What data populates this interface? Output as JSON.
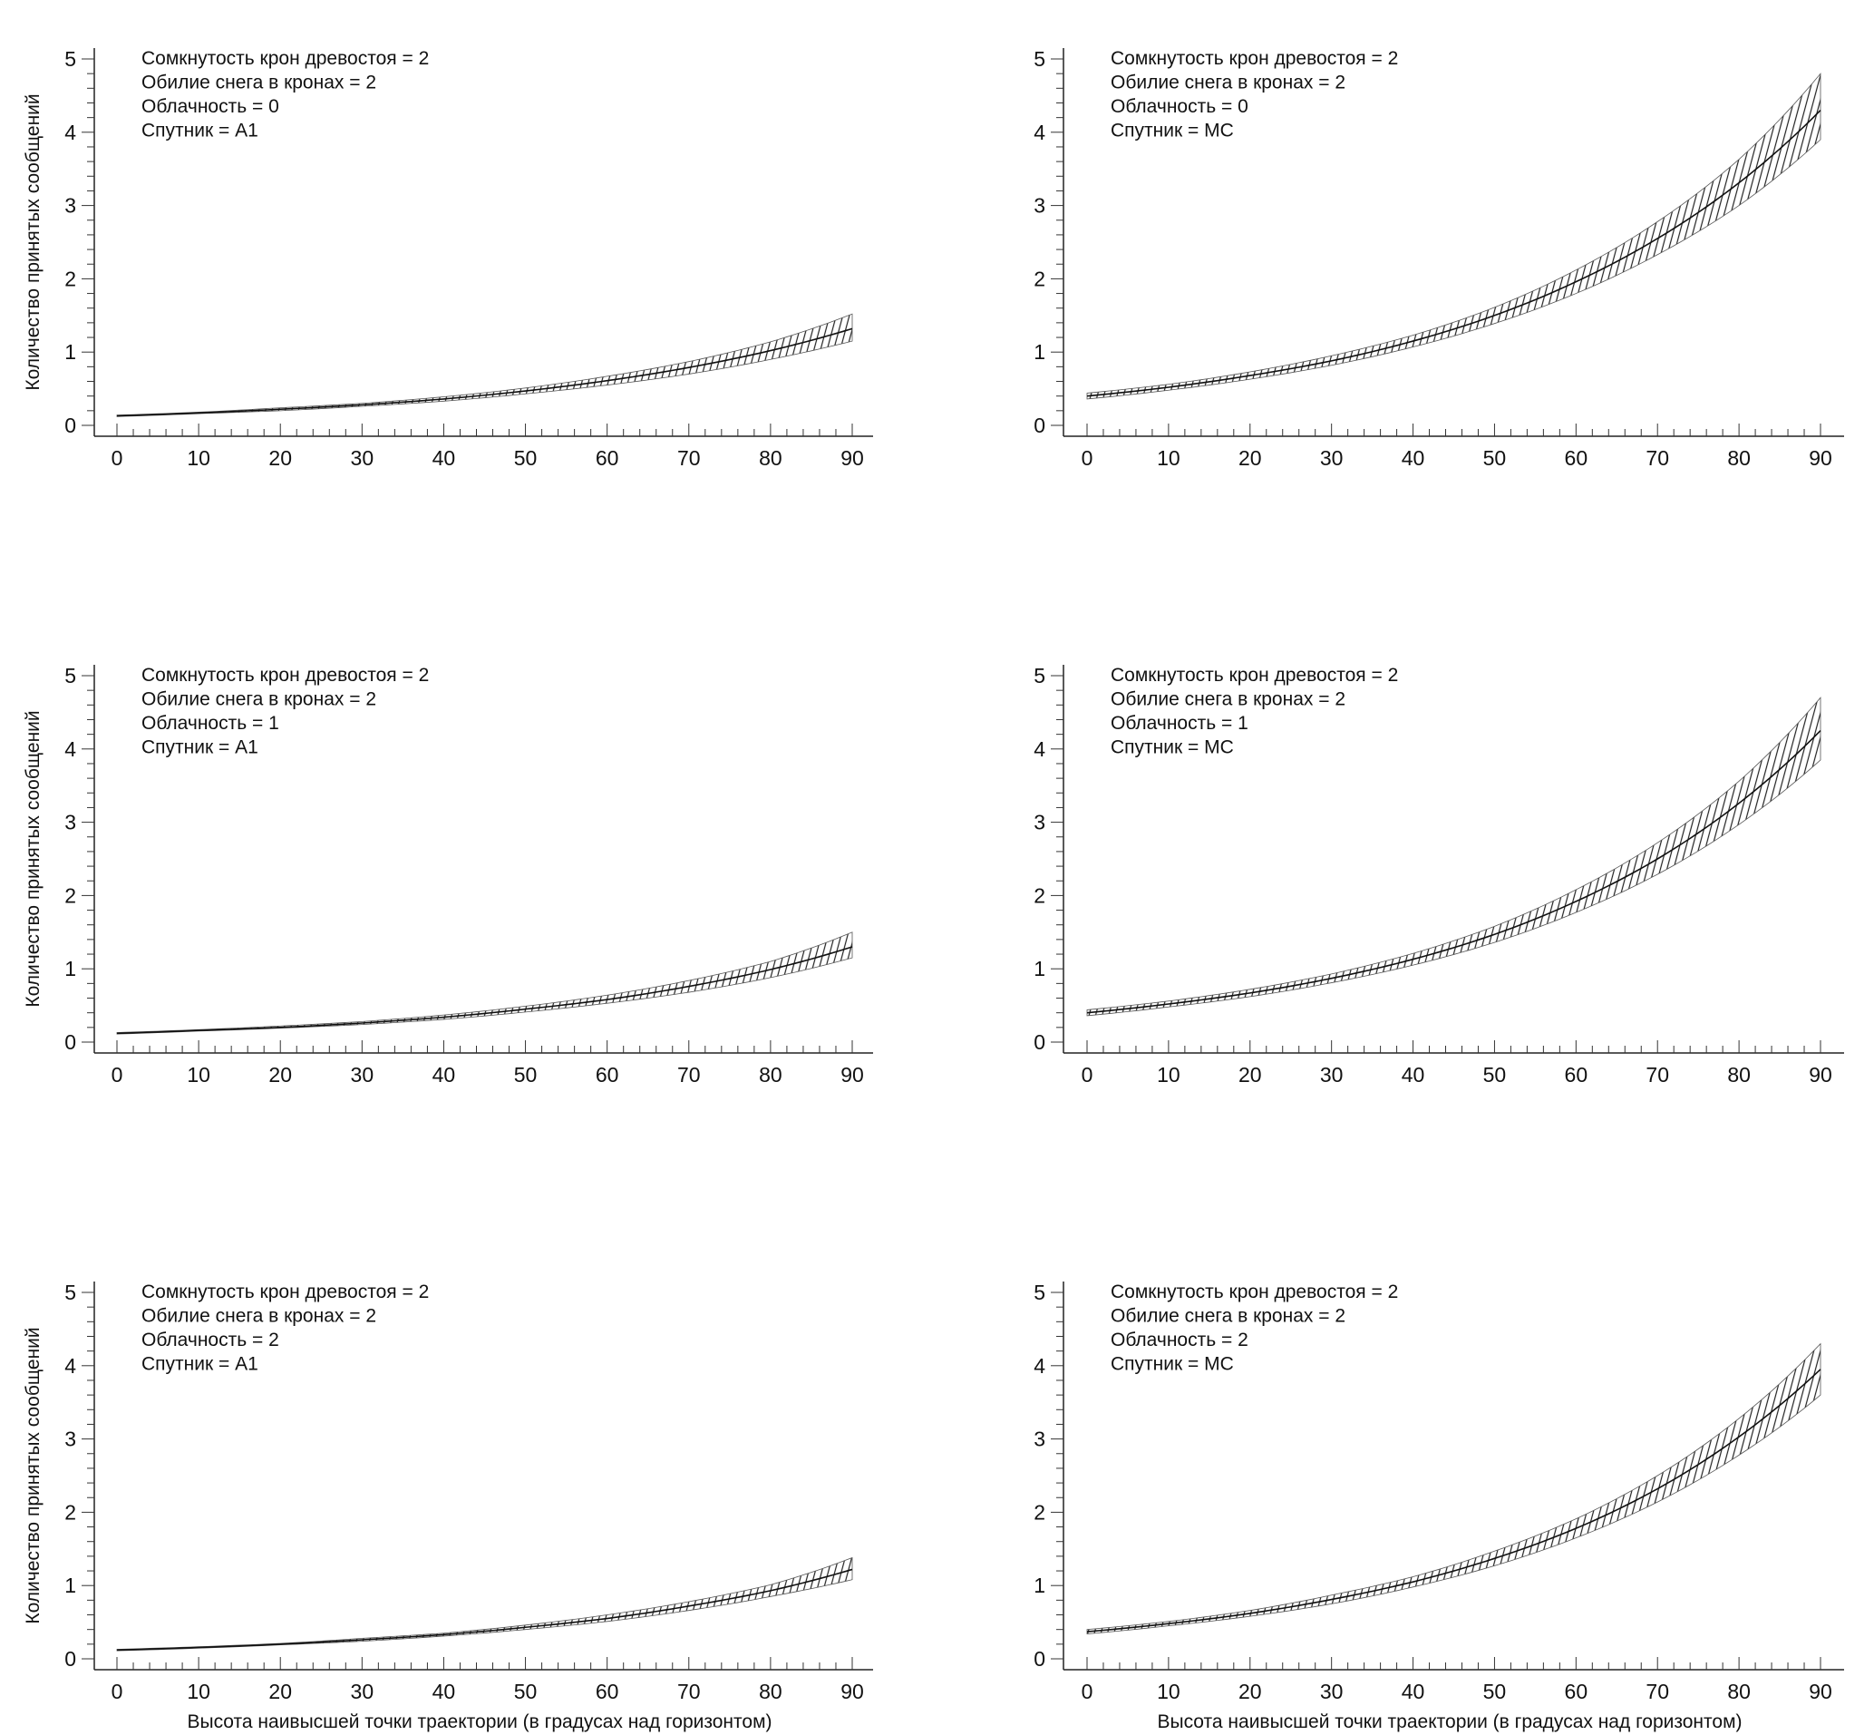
{
  "chart_data": [
    {
      "type": "line",
      "title": "",
      "legend": [
        "Сомкнутость крон древостоя = 2",
        "Обилие снега в кронах = 2",
        "Облачность = 0",
        "Спутник = A1"
      ],
      "ylabel": "Количество принятых сообщений",
      "xlabel": "",
      "x": [
        0,
        10,
        20,
        30,
        40,
        50,
        60,
        70,
        80,
        90
      ],
      "mean": [
        0.13,
        0.17,
        0.22,
        0.28,
        0.36,
        0.47,
        0.61,
        0.79,
        1.02,
        1.32
      ],
      "lower": [
        0.12,
        0.16,
        0.2,
        0.26,
        0.33,
        0.43,
        0.55,
        0.7,
        0.9,
        1.15
      ],
      "upper": [
        0.14,
        0.18,
        0.24,
        0.3,
        0.39,
        0.51,
        0.67,
        0.87,
        1.14,
        1.52
      ],
      "xlim": [
        0,
        90
      ],
      "ylim": [
        0,
        5
      ],
      "xticks": [
        "0",
        "10",
        "20",
        "30",
        "40",
        "50",
        "60",
        "70",
        "80",
        "90"
      ],
      "yticks": [
        "0",
        "1",
        "2",
        "3",
        "4",
        "5"
      ]
    },
    {
      "type": "line",
      "title": "",
      "legend": [
        "Сомкнутость крон древостоя = 2",
        "Обилие снега в кронах = 2",
        "Облачность = 0",
        "Спутник = МС"
      ],
      "ylabel": "",
      "xlabel": "",
      "x": [
        0,
        10,
        20,
        30,
        40,
        50,
        60,
        70,
        80,
        90
      ],
      "mean": [
        0.4,
        0.52,
        0.68,
        0.88,
        1.15,
        1.5,
        1.96,
        2.55,
        3.31,
        4.3
      ],
      "lower": [
        0.36,
        0.48,
        0.63,
        0.82,
        1.07,
        1.39,
        1.8,
        2.33,
        3.0,
        3.9
      ],
      "upper": [
        0.44,
        0.56,
        0.73,
        0.95,
        1.23,
        1.61,
        2.12,
        2.78,
        3.63,
        4.8
      ],
      "xlim": [
        0,
        90
      ],
      "ylim": [
        0,
        5
      ],
      "xticks": [
        "0",
        "10",
        "20",
        "30",
        "40",
        "50",
        "60",
        "70",
        "80",
        "90"
      ],
      "yticks": [
        "0",
        "1",
        "2",
        "3",
        "4",
        "5"
      ]
    },
    {
      "type": "line",
      "title": "",
      "legend": [
        "Сомкнутость крон древостоя = 2",
        "Обилие снега в кронах = 2",
        "Облачность = 1",
        "Спутник = A1"
      ],
      "ylabel": "Количество принятых сообщений",
      "xlabel": "",
      "x": [
        0,
        10,
        20,
        30,
        40,
        50,
        60,
        70,
        80,
        90
      ],
      "mean": [
        0.12,
        0.16,
        0.2,
        0.26,
        0.34,
        0.45,
        0.58,
        0.76,
        0.99,
        1.3
      ],
      "lower": [
        0.11,
        0.15,
        0.19,
        0.24,
        0.31,
        0.41,
        0.53,
        0.68,
        0.88,
        1.15
      ],
      "upper": [
        0.13,
        0.17,
        0.22,
        0.28,
        0.37,
        0.49,
        0.64,
        0.84,
        1.1,
        1.5
      ],
      "xlim": [
        0,
        90
      ],
      "ylim": [
        0,
        5
      ],
      "xticks": [
        "0",
        "10",
        "20",
        "30",
        "40",
        "50",
        "60",
        "70",
        "80",
        "90"
      ],
      "yticks": [
        "0",
        "1",
        "2",
        "3",
        "4",
        "5"
      ]
    },
    {
      "type": "line",
      "title": "",
      "legend": [
        "Сомкнутость крон древостоя = 2",
        "Обилие снега в кронах = 2",
        "Облачность = 1",
        "Спутник = МС"
      ],
      "ylabel": "",
      "xlabel": "",
      "x": [
        0,
        10,
        20,
        30,
        40,
        50,
        60,
        70,
        80,
        90
      ],
      "mean": [
        0.4,
        0.52,
        0.67,
        0.87,
        1.13,
        1.47,
        1.92,
        2.5,
        3.26,
        4.25
      ],
      "lower": [
        0.36,
        0.48,
        0.62,
        0.81,
        1.05,
        1.36,
        1.77,
        2.29,
        2.97,
        3.85
      ],
      "upper": [
        0.44,
        0.56,
        0.72,
        0.93,
        1.21,
        1.58,
        2.08,
        2.72,
        3.56,
        4.7
      ],
      "xlim": [
        0,
        90
      ],
      "ylim": [
        0,
        5
      ],
      "xticks": [
        "0",
        "10",
        "20",
        "30",
        "40",
        "50",
        "60",
        "70",
        "80",
        "90"
      ],
      "yticks": [
        "0",
        "1",
        "2",
        "3",
        "4",
        "5"
      ]
    },
    {
      "type": "line",
      "title": "",
      "legend": [
        "Сомкнутость крон древостоя = 2",
        "Обилие снега в кронах = 2",
        "Облачность = 2",
        "Спутник = A1"
      ],
      "ylabel": "Количество принятых сообщений",
      "xlabel": "Высота наивысшей точки траектории (в градусах над горизонтом)",
      "x": [
        0,
        10,
        20,
        30,
        40,
        50,
        60,
        70,
        80,
        90
      ],
      "mean": [
        0.12,
        0.155,
        0.2,
        0.26,
        0.33,
        0.43,
        0.55,
        0.72,
        0.93,
        1.22
      ],
      "lower": [
        0.11,
        0.145,
        0.19,
        0.24,
        0.31,
        0.4,
        0.51,
        0.66,
        0.85,
        1.08
      ],
      "upper": [
        0.13,
        0.165,
        0.21,
        0.28,
        0.35,
        0.46,
        0.6,
        0.78,
        1.01,
        1.38
      ],
      "xlim": [
        0,
        90
      ],
      "ylim": [
        0,
        5
      ],
      "xticks": [
        "0",
        "10",
        "20",
        "30",
        "40",
        "50",
        "60",
        "70",
        "80",
        "90"
      ],
      "yticks": [
        "0",
        "1",
        "2",
        "3",
        "4",
        "5"
      ]
    },
    {
      "type": "line",
      "title": "",
      "legend": [
        "Сомкнутость крон древостоя = 2",
        "Обилие снега в кронах = 2",
        "Облачность = 2",
        "Спутник = МС"
      ],
      "ylabel": "",
      "xlabel": "Высота наивысшей точки траектории (в градусах над горизонтом)",
      "x": [
        0,
        10,
        20,
        30,
        40,
        50,
        60,
        70,
        80,
        90
      ],
      "mean": [
        0.37,
        0.48,
        0.62,
        0.81,
        1.05,
        1.37,
        1.78,
        2.32,
        3.03,
        3.95
      ],
      "lower": [
        0.34,
        0.45,
        0.58,
        0.75,
        0.98,
        1.27,
        1.65,
        2.14,
        2.78,
        3.6
      ],
      "upper": [
        0.4,
        0.51,
        0.66,
        0.87,
        1.12,
        1.47,
        1.91,
        2.5,
        3.28,
        4.3
      ],
      "xlim": [
        0,
        90
      ],
      "ylim": [
        0,
        5
      ],
      "xticks": [
        "0",
        "10",
        "20",
        "30",
        "40",
        "50",
        "60",
        "70",
        "80",
        "90"
      ],
      "yticks": [
        "0",
        "1",
        "2",
        "3",
        "4",
        "5"
      ]
    }
  ]
}
